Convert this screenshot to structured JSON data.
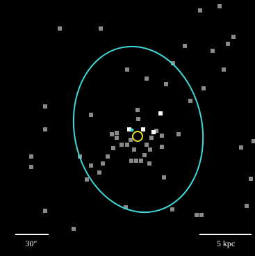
{
  "scale_bars": {
    "angular": "30″",
    "physical": "5 kpc"
  }
}
